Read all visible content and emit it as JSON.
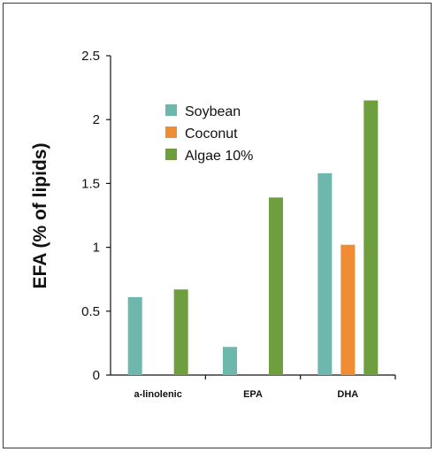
{
  "chart_data": {
    "type": "bar",
    "title": "",
    "xlabel": "",
    "ylabel": "EFA (% of lipids)",
    "ylim": [
      0,
      2.5
    ],
    "yticks": [
      "0",
      "0.5",
      "1",
      "1.5",
      "2",
      "2.5"
    ],
    "categories": [
      "a-linolenic",
      "EPA",
      "DHA"
    ],
    "series": [
      {
        "name": "Soybean",
        "color": "#6db7ad",
        "values": [
          0.61,
          0.22,
          1.58
        ]
      },
      {
        "name": "Coconut",
        "color": "#f08c34",
        "values": [
          0,
          0,
          1.02
        ]
      },
      {
        "name": "Algae 10%",
        "color": "#6e9e3e",
        "values": [
          0.67,
          1.39,
          2.15
        ]
      }
    ],
    "grid": false,
    "legend_position": "top-left"
  }
}
